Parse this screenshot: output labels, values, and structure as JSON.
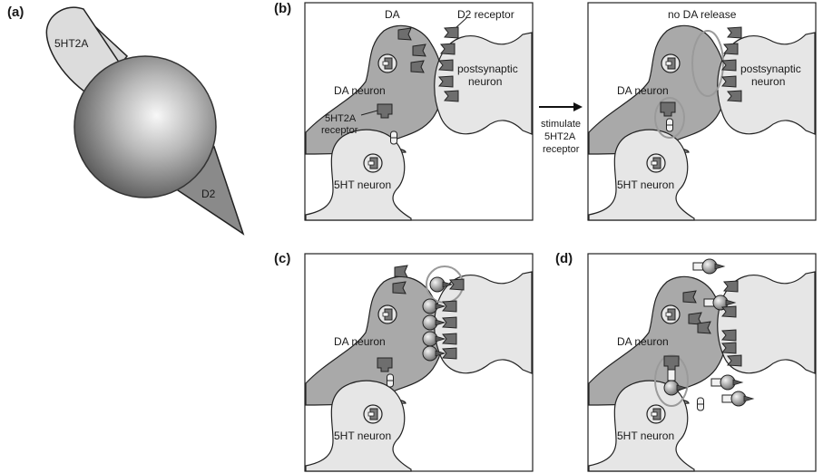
{
  "panels": {
    "a": {
      "label": "(a)",
      "receptor_top": "5HT2A",
      "receptor_bottom": "D2"
    },
    "b": {
      "label": "(b)",
      "before": {
        "dopamine": "DA",
        "d2_receptor": "D2 receptor",
        "postsynaptic_1": "postsynaptic",
        "postsynaptic_2": "neuron",
        "da_neuron": "DA neuron",
        "receptor_5ht2a_1": "5HT2A",
        "receptor_5ht2a_2": "receptor",
        "serotonin_neuron": "5HT neuron"
      },
      "arrow": {
        "line1": "stimulate",
        "line2": "5HT2A",
        "line3": "receptor"
      },
      "after": {
        "no_release": "no DA release",
        "postsynaptic_1": "postsynaptic",
        "postsynaptic_2": "neuron",
        "da_neuron": "DA neuron",
        "serotonin_neuron": "5HT neuron"
      }
    },
    "c": {
      "label": "(c)",
      "da_neuron": "DA neuron",
      "serotonin_neuron": "5HT neuron"
    },
    "d": {
      "label": "(d)",
      "da_neuron": "DA neuron",
      "serotonin_neuron": "5HT neuron"
    }
  },
  "colors": {
    "da_neuron_fill": "#a9a9a9",
    "light_neuron_fill": "#e6e6e6",
    "receptor_fill": "#6e6e6e",
    "outline": "#222222",
    "highlight_ring": "#9a9a9a"
  }
}
